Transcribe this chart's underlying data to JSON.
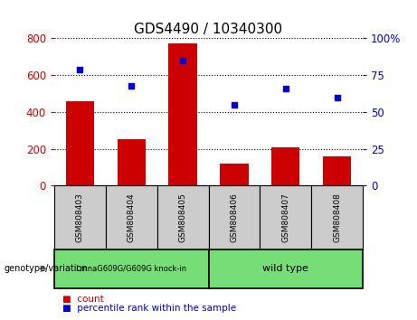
{
  "title": "GDS4490 / 10340300",
  "samples": [
    "GSM808403",
    "GSM808404",
    "GSM808405",
    "GSM808406",
    "GSM808407",
    "GSM808408"
  ],
  "counts": [
    460,
    250,
    775,
    120,
    210,
    160
  ],
  "percentile_ranks": [
    79,
    68,
    85,
    55,
    66,
    60
  ],
  "bar_color": "#cc0000",
  "dot_color": "#0000cc",
  "left_ylim": [
    0,
    800
  ],
  "left_yticks": [
    0,
    200,
    400,
    600,
    800
  ],
  "right_ylim": [
    0,
    100
  ],
  "right_yticks": [
    0,
    25,
    50,
    75,
    100
  ],
  "right_yticklabels": [
    "0",
    "25",
    "50",
    "75",
    "100%"
  ],
  "bar_width": 0.55,
  "group1_label": "LmnaG609G/G609G knock-in",
  "group2_label": "wild type",
  "group_color": "#77dd77",
  "group1_indices": [
    0,
    1,
    2
  ],
  "group2_indices": [
    3,
    4,
    5
  ],
  "genotype_label": "genotype/variation",
  "legend_count_label": "count",
  "legend_pct_label": "percentile rank within the sample",
  "sample_box_color": "#cccccc",
  "title_fontsize": 11,
  "tick_fontsize": 8.5,
  "label_fontsize": 8
}
